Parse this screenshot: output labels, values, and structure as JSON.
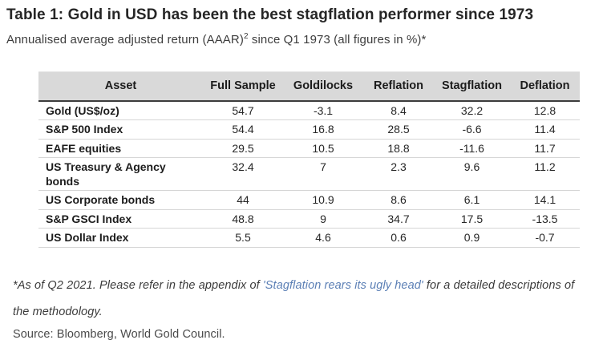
{
  "header": {
    "title": "Table 1: Gold in USD has been the best stagflation performer since 1973",
    "subtitle_part1": "Annualised average adjusted return (AAAR)",
    "subtitle_sup": "2",
    "subtitle_part2": " since Q1 1973 (all figures in %)*"
  },
  "table": {
    "columns": [
      "Asset",
      "Full Sample",
      "Goldilocks",
      "Reflation",
      "Stagflation",
      "Deflation"
    ],
    "rows": [
      {
        "asset": "Gold (US$/oz)",
        "values": [
          "54.7",
          "-3.1",
          "8.4",
          "32.2",
          "12.8"
        ]
      },
      {
        "asset": "S&P 500 Index",
        "values": [
          "54.4",
          "16.8",
          "28.5",
          "-6.6",
          "11.4"
        ]
      },
      {
        "asset": "EAFE equities",
        "values": [
          "29.5",
          "10.5",
          "18.8",
          "-11.6",
          "11.7"
        ]
      },
      {
        "asset": "US Treasury & Agency bonds",
        "values": [
          "32.4",
          "7",
          "2.3",
          "9.6",
          "11.2"
        ]
      },
      {
        "asset": "US Corporate bonds",
        "values": [
          "44",
          "10.9",
          "8.6",
          "6.1",
          "14.1"
        ]
      },
      {
        "asset": "S&P GSCI Index",
        "values": [
          "48.8",
          "9",
          "34.7",
          "17.5",
          "-13.5"
        ]
      },
      {
        "asset": "US Dollar Index",
        "values": [
          "5.5",
          "4.6",
          "0.6",
          "0.9",
          "-0.7"
        ]
      }
    ]
  },
  "footnote": {
    "part1": "*As of Q2 2021. Please refer in the appendix of ",
    "link": "'Stagflation rears its ugly head'",
    "part2": " for a detailed descriptions of the methodology."
  },
  "source": "Source: Bloomberg, World Gold Council.",
  "colors": {
    "link_blue": "#5b7fb5",
    "header_band": "#d9d9d9",
    "header_rule": "#3c3c3c",
    "row_separator": "#d6d6d6",
    "title_text": "#262626"
  },
  "chart_data": {
    "type": "table",
    "title": "Table 1: Gold in USD has been the best stagflation performer since 1973",
    "subtitle": "Annualised average adjusted return (AAAR)2 since Q1 1973 (all figures in %)*",
    "columns": [
      "Asset",
      "Full Sample",
      "Goldilocks",
      "Reflation",
      "Stagflation",
      "Deflation"
    ],
    "rows": [
      [
        "Gold (US$/oz)",
        54.7,
        -3.1,
        8.4,
        32.2,
        12.8
      ],
      [
        "S&P 500 Index",
        54.4,
        16.8,
        28.5,
        -6.6,
        11.4
      ],
      [
        "EAFE equities",
        29.5,
        10.5,
        18.8,
        -11.6,
        11.7
      ],
      [
        "US Treasury & Agency bonds",
        32.4,
        7,
        2.3,
        9.6,
        11.2
      ],
      [
        "US Corporate bonds",
        44,
        10.9,
        8.6,
        6.1,
        14.1
      ],
      [
        "S&P GSCI Index",
        48.8,
        9,
        34.7,
        17.5,
        -13.5
      ],
      [
        "US Dollar Index",
        5.5,
        4.6,
        0.6,
        0.9,
        -0.7
      ]
    ],
    "units": "percent",
    "notes": "*As of Q2 2021. Please refer in the appendix of 'Stagflation rears its ugly head' for a detailed descriptions of the methodology.",
    "source": "Source: Bloomberg, World Gold Council."
  }
}
